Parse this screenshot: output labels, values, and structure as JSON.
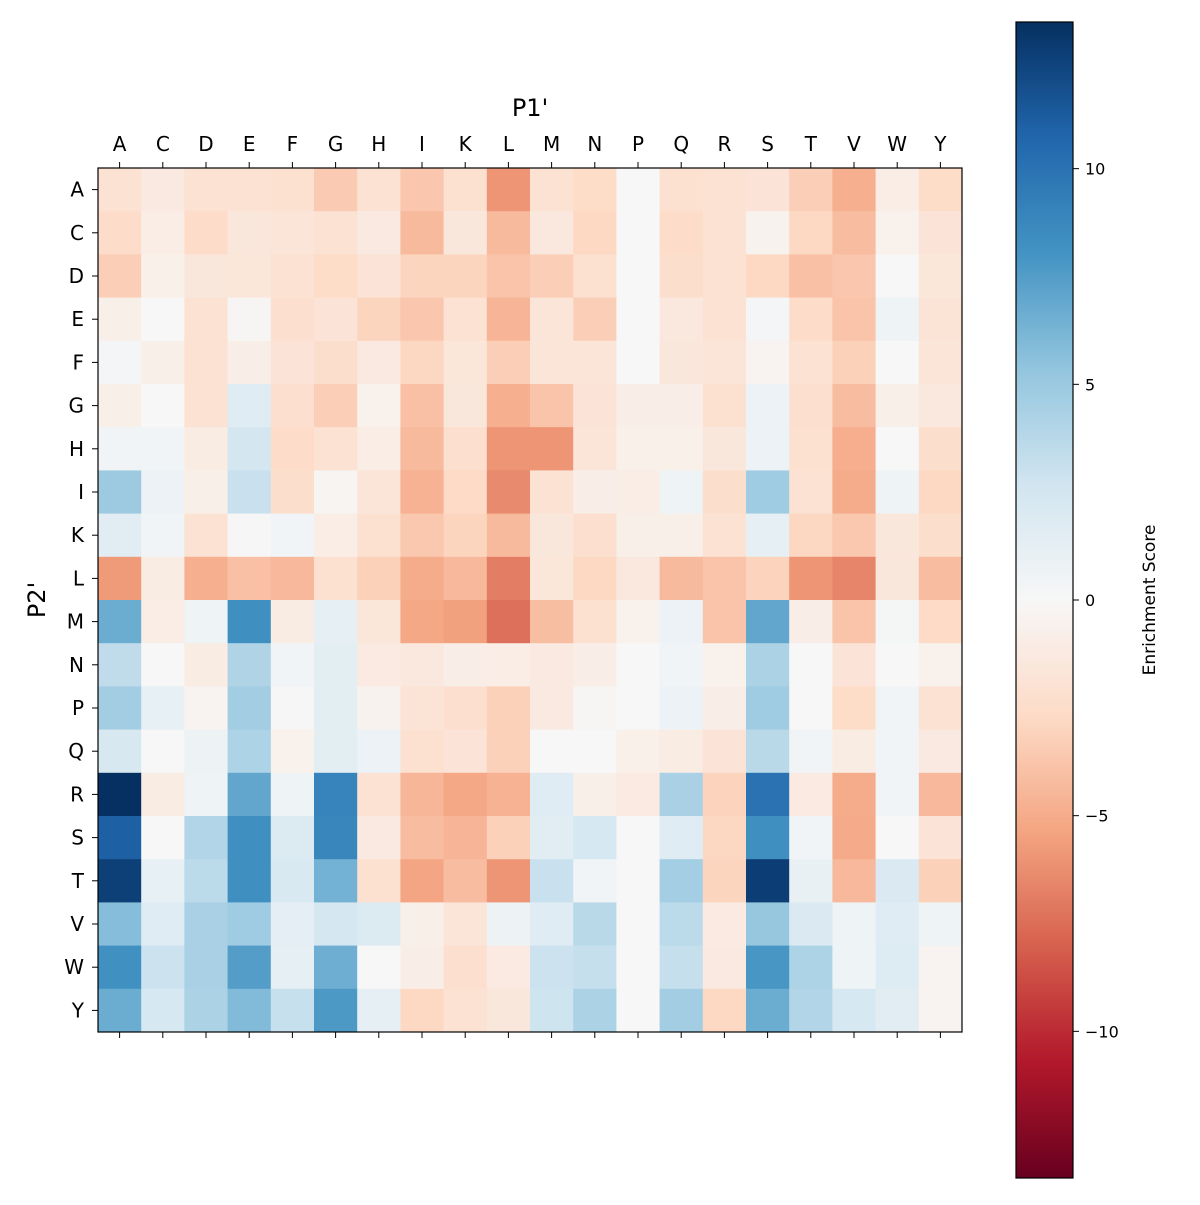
{
  "chart_data": {
    "type": "heatmap",
    "title": "",
    "xlabel": "P1'",
    "ylabel": "P2'",
    "colorbar_label": "Enrichment Score",
    "colormap": "RdBu",
    "vlim": [
      -13.4,
      13.4
    ],
    "colorbar_ticks": [
      -10,
      -5,
      0,
      5,
      10
    ],
    "colorbar_tick_labels": [
      "−10",
      "−5",
      "0",
      "5",
      "10"
    ],
    "x_categories": [
      "A",
      "C",
      "D",
      "E",
      "F",
      "G",
      "H",
      "I",
      "K",
      "L",
      "M",
      "N",
      "P",
      "Q",
      "R",
      "S",
      "T",
      "V",
      "W",
      "Y"
    ],
    "y_categories": [
      "A",
      "C",
      "D",
      "E",
      "F",
      "G",
      "H",
      "I",
      "K",
      "L",
      "M",
      "N",
      "P",
      "Q",
      "R",
      "S",
      "T",
      "V",
      "W",
      "Y"
    ],
    "values": [
      [
        -2.0,
        -1.3,
        -2.0,
        -2.0,
        -2.2,
        -3.5,
        -2.0,
        -3.7,
        -2.2,
        -6.0,
        -2.0,
        -2.6,
        0,
        -2.2,
        -2.0,
        -1.8,
        -3.3,
        -4.8,
        -1.0,
        -2.6
      ],
      [
        -2.5,
        -1.0,
        -2.5,
        -1.5,
        -1.7,
        -2.0,
        -1.3,
        -4.3,
        -1.5,
        -4.3,
        -1.4,
        -2.8,
        0,
        -2.5,
        -2.0,
        -0.5,
        -2.8,
        -4.2,
        -0.6,
        -1.8
      ],
      [
        -3.3,
        -0.7,
        -1.5,
        -1.6,
        -2.0,
        -2.6,
        -1.8,
        -3.0,
        -3.0,
        -3.8,
        -3.3,
        -2.2,
        0,
        -2.4,
        -2.0,
        -2.8,
        -4.0,
        -3.7,
        0,
        -1.6
      ],
      [
        -0.8,
        0,
        -2.0,
        -0.2,
        -2.3,
        -1.8,
        -3.0,
        -3.7,
        -2.0,
        -4.6,
        -1.7,
        -3.3,
        0,
        -1.4,
        -2.0,
        0.3,
        -2.5,
        -3.8,
        0.6,
        -1.9
      ],
      [
        0.3,
        -0.8,
        -2.0,
        -0.9,
        -1.8,
        -2.4,
        -1.3,
        -2.9,
        -1.6,
        -3.3,
        -1.7,
        -1.7,
        0,
        -1.5,
        -1.7,
        -0.4,
        -2.0,
        -3.2,
        0,
        -1.7
      ],
      [
        -0.8,
        0,
        -2.0,
        1.7,
        -2.3,
        -3.3,
        -0.6,
        -4.0,
        -1.5,
        -4.8,
        -3.8,
        -1.8,
        -0.9,
        -0.9,
        -2.1,
        0.8,
        -2.3,
        -4.2,
        -0.8,
        -1.4
      ],
      [
        0.5,
        0.5,
        -1.1,
        2.5,
        -2.5,
        -2.0,
        -1.0,
        -4.3,
        -2.3,
        -6.0,
        -6.0,
        -1.7,
        -0.7,
        -0.7,
        -1.5,
        0.8,
        -2.1,
        -4.9,
        0,
        -2.4
      ],
      [
        4.9,
        0.8,
        -0.8,
        3.0,
        -2.4,
        -0.3,
        -1.7,
        -4.7,
        -2.7,
        -6.4,
        -2.0,
        -0.9,
        -1.0,
        0.6,
        -2.4,
        4.8,
        -2.0,
        -5.0,
        0.6,
        -2.8
      ],
      [
        1.5,
        0.5,
        -2.0,
        0.1,
        0.5,
        -1.0,
        -2.1,
        -3.6,
        -3.0,
        -4.3,
        -1.5,
        -2.3,
        -0.8,
        -0.8,
        -2.0,
        1.2,
        -2.9,
        -3.6,
        -1.5,
        -2.4
      ],
      [
        -5.8,
        -1.1,
        -4.8,
        -4.0,
        -4.4,
        -2.2,
        -3.2,
        -5.0,
        -4.4,
        -6.9,
        -1.6,
        -2.8,
        -1.4,
        -4.3,
        -3.8,
        -3.1,
        -6.0,
        -6.6,
        -1.5,
        -4.2
      ],
      [
        6.7,
        -1.0,
        0.6,
        8.3,
        -1.1,
        1.2,
        -1.6,
        -5.2,
        -5.5,
        -7.4,
        -4.1,
        -2.2,
        -0.6,
        0.8,
        -3.8,
        7.0,
        -0.9,
        -3.8,
        0.2,
        -2.7
      ],
      [
        3.4,
        0,
        -1.1,
        4.1,
        0.4,
        1.4,
        -1.2,
        -1.4,
        -0.9,
        -1.0,
        -1.3,
        -0.9,
        0,
        0.4,
        -0.6,
        4.3,
        0,
        -1.8,
        0,
        -0.6
      ],
      [
        4.7,
        1.1,
        -0.4,
        4.7,
        0.1,
        1.4,
        -0.5,
        -1.9,
        -2.3,
        -3.2,
        -1.3,
        -0.2,
        0,
        0.8,
        -0.9,
        4.8,
        0,
        -2.6,
        0.4,
        -2.0
      ],
      [
        2.2,
        0,
        0.7,
        4.2,
        -0.6,
        1.4,
        0.8,
        -2.2,
        -1.8,
        -3.2,
        0,
        0,
        -0.7,
        -1.1,
        -1.8,
        3.7,
        0.4,
        -1.1,
        0.4,
        -1.3
      ],
      [
        13.4,
        -1.1,
        0.6,
        7.0,
        0.6,
        9.0,
        -2.0,
        -4.5,
        -5.2,
        -4.7,
        1.7,
        -0.8,
        -1.2,
        4.4,
        -3.1,
        10.0,
        -1.2,
        -5.0,
        0.4,
        -4.4
      ],
      [
        11.0,
        0,
        4.0,
        8.3,
        1.9,
        8.8,
        -1.3,
        -4.2,
        -4.6,
        -3.2,
        1.5,
        2.3,
        0,
        1.6,
        -2.9,
        8.3,
        0.4,
        -5.1,
        0,
        -1.8
      ],
      [
        12.6,
        1.1,
        3.6,
        8.3,
        2.1,
        6.4,
        -2.2,
        -5.3,
        -4.2,
        -6.0,
        3.0,
        0.5,
        0,
        4.6,
        -3.0,
        12.7,
        1.0,
        -4.4,
        2.0,
        -3.2
      ],
      [
        5.8,
        1.7,
        4.4,
        4.8,
        1.3,
        2.4,
        1.9,
        -0.8,
        -1.7,
        0.7,
        1.6,
        3.7,
        0,
        3.6,
        -1.2,
        5.2,
        2.0,
        0.6,
        1.7,
        0.6
      ],
      [
        8.2,
        2.9,
        4.4,
        7.5,
        1.2,
        6.6,
        0,
        -0.9,
        -2.3,
        -1.2,
        2.9,
        3.2,
        0,
        3.2,
        -1.3,
        7.9,
        4.2,
        0.6,
        1.8,
        -0.4
      ],
      [
        6.7,
        2.3,
        4.3,
        5.9,
        3.1,
        7.7,
        1.2,
        -2.8,
        -2.0,
        -1.5,
        2.8,
        4.3,
        0,
        4.7,
        -2.8,
        6.7,
        4.0,
        2.3,
        1.5,
        -0.4
      ]
    ]
  }
}
